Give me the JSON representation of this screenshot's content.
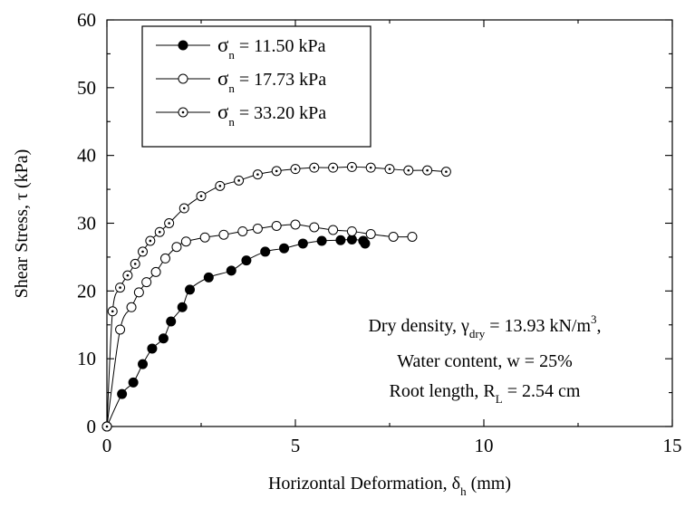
{
  "chart_data": {
    "type": "scatter",
    "xlabel": "Horizontal Deformation, δh (mm)",
    "xlabel_parts": {
      "main": "Horizontal Deformation, δ",
      "sub": "h",
      "unit": " (mm)"
    },
    "ylabel": "Shear Stress, τ (kPa)",
    "xlim": [
      0,
      15
    ],
    "ylim": [
      0,
      60
    ],
    "xticks": [
      "0",
      "5",
      "10",
      "15"
    ],
    "yticks": [
      "0",
      "10",
      "20",
      "30",
      "40",
      "50",
      "60"
    ],
    "grid": false,
    "legend_position": "top-left",
    "series": [
      {
        "name": "σn = 11.50 kPa",
        "label_parts": {
          "sym": "σ",
          "sub": "n",
          "rest": " = 11.50 kPa"
        },
        "marker": "filled-circle",
        "x": [
          0,
          0.4,
          0.7,
          0.95,
          1.2,
          1.5,
          1.7,
          2.0,
          2.2,
          2.7,
          3.3,
          3.7,
          4.2,
          4.7,
          5.2,
          5.7,
          6.2,
          6.5,
          6.8,
          6.85
        ],
        "y": [
          0,
          4.8,
          6.5,
          9.2,
          11.5,
          13.0,
          15.5,
          17.6,
          20.2,
          22.0,
          23.0,
          24.5,
          25.8,
          26.3,
          27.0,
          27.4,
          27.5,
          27.6,
          27.4,
          27.0
        ]
      },
      {
        "name": "σn = 17.73 kPa",
        "label_parts": {
          "sym": "σ",
          "sub": "n",
          "rest": " = 17.73 kPa"
        },
        "marker": "open-circle",
        "x": [
          0,
          0.35,
          0.65,
          0.85,
          1.05,
          1.3,
          1.55,
          1.85,
          2.1,
          2.6,
          3.1,
          3.6,
          4.0,
          4.5,
          5.0,
          5.5,
          6.0,
          6.5,
          7.0,
          7.6,
          8.1
        ],
        "y": [
          0,
          14.3,
          17.6,
          19.8,
          21.3,
          22.8,
          24.8,
          26.5,
          27.3,
          27.9,
          28.3,
          28.8,
          29.2,
          29.6,
          29.8,
          29.4,
          29.0,
          28.8,
          28.4,
          28.0,
          28.0
        ]
      },
      {
        "name": "σn = 33.20 kPa",
        "label_parts": {
          "sym": "σ",
          "sub": "n",
          "rest": " = 33.20 kPa"
        },
        "marker": "dotted-circle",
        "x": [
          0,
          0.15,
          0.35,
          0.55,
          0.75,
          0.95,
          1.15,
          1.4,
          1.65,
          2.05,
          2.5,
          3.0,
          3.5,
          4.0,
          4.5,
          5.0,
          5.5,
          6.0,
          6.5,
          7.0,
          7.5,
          8.0,
          8.5,
          9.0
        ],
        "y": [
          0,
          17.0,
          20.5,
          22.3,
          24.0,
          25.8,
          27.4,
          28.7,
          30.0,
          32.2,
          34.0,
          35.5,
          36.3,
          37.2,
          37.7,
          38.0,
          38.2,
          38.2,
          38.3,
          38.2,
          38.0,
          37.8,
          37.8,
          37.6
        ]
      }
    ],
    "annotations": [
      {
        "parts": {
          "a": "Dry density, γ",
          "sub": "dry",
          "b": " = 13.93 kN/m",
          "sup": "3",
          "c": ","
        }
      },
      {
        "parts": {
          "a": "Water content, w = 25%"
        }
      },
      {
        "parts": {
          "a": "Root length, R",
          "sub": "L",
          "b": " = 2.54 cm"
        }
      }
    ]
  }
}
